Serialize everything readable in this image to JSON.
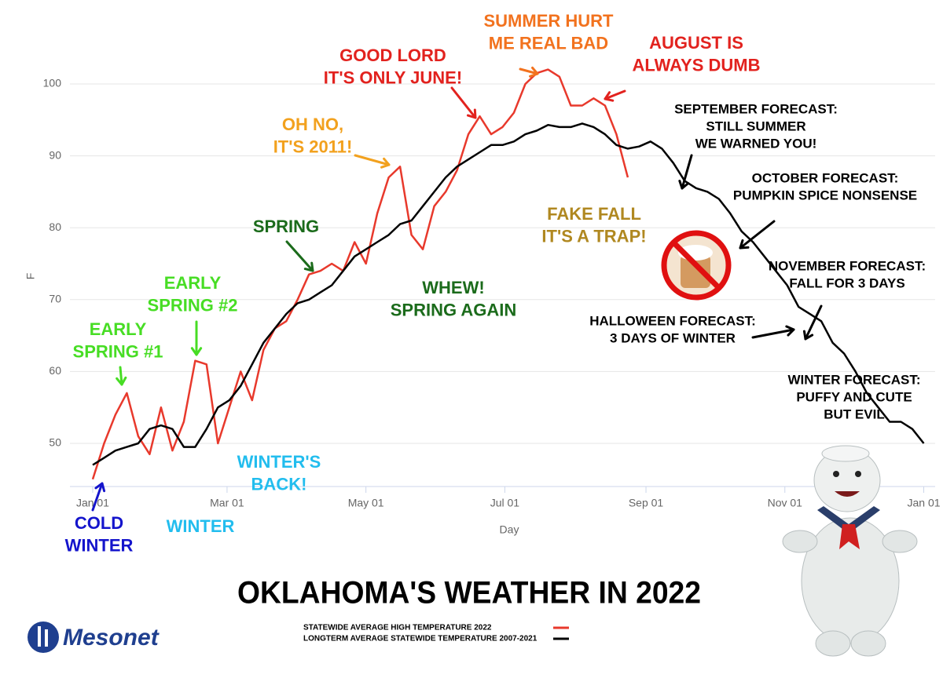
{
  "chart_data": {
    "type": "line",
    "title": "OKLAHOMA'S WEATHER IN 2022",
    "x_label": "Day",
    "y_label": "F",
    "xlim": [
      -10,
      370
    ],
    "ylim": [
      44,
      106
    ],
    "xticks": [
      {
        "value": 0,
        "label": "Jan 01"
      },
      {
        "value": 59,
        "label": "Mar 01"
      },
      {
        "value": 120,
        "label": "May 01"
      },
      {
        "value": 181,
        "label": "Jul 01"
      },
      {
        "value": 243,
        "label": "Sep 01"
      },
      {
        "value": 304,
        "label": "Nov 01"
      },
      {
        "value": 365,
        "label": "Jan 01"
      }
    ],
    "yticks": [
      50,
      60,
      70,
      80,
      90,
      100
    ],
    "grid": true,
    "x": [
      0,
      5,
      10,
      15,
      20,
      25,
      30,
      35,
      40,
      45,
      50,
      55,
      60,
      65,
      70,
      75,
      80,
      85,
      90,
      95,
      100,
      105,
      110,
      115,
      120,
      125,
      130,
      135,
      140,
      145,
      150,
      155,
      160,
      165,
      170,
      175,
      180,
      185,
      190,
      195,
      200,
      205,
      210,
      215,
      220,
      225,
      230,
      235,
      240,
      245,
      250,
      255,
      260,
      265,
      270,
      275,
      280,
      285,
      290,
      295,
      300,
      305,
      310,
      315,
      320,
      325,
      330,
      335,
      340,
      345,
      350,
      355,
      360,
      365
    ],
    "series": [
      {
        "name": "STATEWIDE AVERAGE HIGH TEMPERATURE 2022",
        "color": "#e8392c",
        "values": [
          45,
          50,
          54,
          57,
          51,
          48.5,
          55,
          49,
          53,
          61.5,
          61,
          50,
          55,
          60,
          56,
          63,
          66,
          67,
          70,
          73.5,
          74,
          75,
          74,
          78,
          75,
          82,
          87,
          88.5,
          79,
          77,
          83,
          85,
          88,
          93,
          95.5,
          93,
          94,
          96,
          100,
          101.5,
          102,
          101,
          97,
          97,
          98,
          97,
          93,
          87,
          null,
          null,
          null,
          null,
          null,
          null,
          null,
          null,
          null,
          null,
          null,
          null,
          null,
          null,
          null,
          null,
          null,
          null,
          null,
          null,
          null,
          null,
          null,
          null,
          null,
          null
        ]
      },
      {
        "name": "LONGTERM AVERAGE STATEWIDE TEMPERATURE 2007-2021",
        "color": "#000000",
        "values": [
          47,
          48,
          49,
          49.5,
          50,
          52,
          52.5,
          52,
          49.5,
          49.5,
          52,
          55,
          56,
          58,
          61,
          64,
          66,
          68,
          69.5,
          70,
          71,
          72,
          74,
          76,
          77,
          78,
          79,
          80.5,
          81,
          83,
          85,
          87,
          88.5,
          89.5,
          90.5,
          91.5,
          91.5,
          92,
          93,
          93.5,
          94.3,
          94,
          94,
          94.5,
          94,
          93,
          91.5,
          91,
          91.3,
          92,
          91,
          89,
          86.5,
          85.5,
          85,
          84,
          82,
          79.5,
          78,
          76,
          74,
          72,
          69,
          68,
          67,
          64,
          62.5,
          60,
          57,
          55,
          53,
          53,
          52,
          50
        ]
      }
    ],
    "annotations": [
      {
        "lines": [
          "COLD",
          "WINTER"
        ],
        "color": "#1414cc"
      },
      {
        "lines": [
          "WINTER"
        ],
        "color": "#22bdee"
      },
      {
        "lines": [
          "WINTER'S",
          "BACK!"
        ],
        "color": "#22bdee"
      },
      {
        "lines": [
          "EARLY",
          "SPRING #1"
        ],
        "color": "#47dd24"
      },
      {
        "lines": [
          "EARLY",
          "SPRING #2"
        ],
        "color": "#47dd24"
      },
      {
        "lines": [
          "SPRING"
        ],
        "color": "#1b6b1b"
      },
      {
        "lines": [
          "WHEW!",
          "SPRING AGAIN"
        ],
        "color": "#1b6b1b"
      },
      {
        "lines": [
          "OH NO,",
          "IT'S 2011!"
        ],
        "color": "#f2a11e"
      },
      {
        "lines": [
          "GOOD LORD",
          "IT'S ONLY JUNE!"
        ],
        "color": "#e2221e"
      },
      {
        "lines": [
          "SUMMER HURT",
          "ME REAL BAD"
        ],
        "color": "#f2721e"
      },
      {
        "lines": [
          "AUGUST IS",
          "ALWAYS DUMB"
        ],
        "color": "#e2221e"
      },
      {
        "lines": [
          "FAKE FALL",
          "IT'S A TRAP!"
        ],
        "color": "#b08820"
      },
      {
        "lines": [
          "SEPTEMBER FORECAST:",
          "STILL SUMMER",
          "WE WARNED YOU!"
        ],
        "color": "#000000"
      },
      {
        "lines": [
          "OCTOBER FORECAST:",
          "PUMPKIN SPICE NONSENSE"
        ],
        "color": "#000000"
      },
      {
        "lines": [
          "NOVEMBER FORECAST:",
          "FALL FOR 3 DAYS"
        ],
        "color": "#000000"
      },
      {
        "lines": [
          "HALLOWEEN FORECAST:",
          "3 DAYS OF WINTER"
        ],
        "color": "#000000"
      },
      {
        "lines": [
          "WINTER FORECAST:",
          "PUFFY AND CUTE",
          "BUT EVIL"
        ],
        "color": "#000000"
      }
    ],
    "logo": "Mesonet"
  }
}
